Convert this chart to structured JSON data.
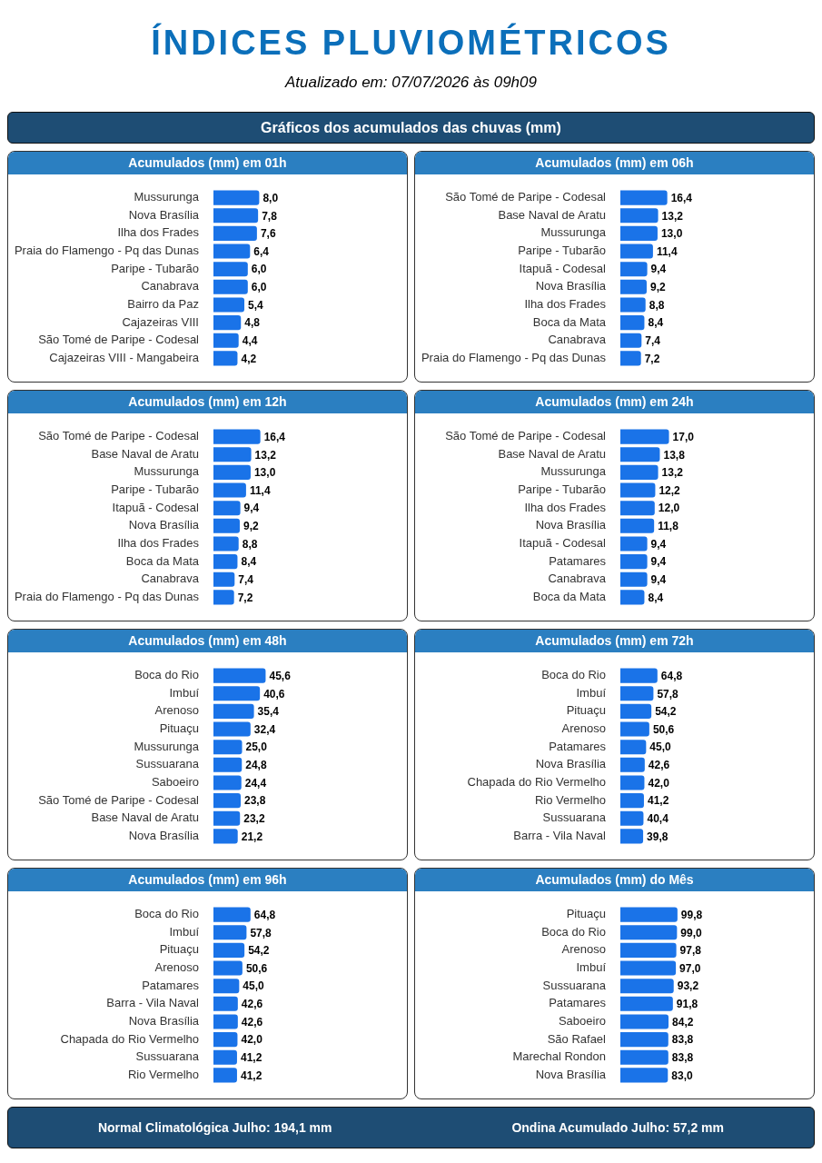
{
  "chart_data": [
    {
      "type": "other",
      "title": "ÍNDICES PLUVIOMÉTRICOS",
      "subtitle": "Atualizado em: 07/07/2026 às 09h09",
      "annotations": [
        "Gráficos dos acumulados das chuvas (mm)"
      ]
    },
    {
      "type": "bar",
      "orientation": "horizontal",
      "title": "Acumulados (mm) em 01h",
      "categories": [
        "Mussurunga",
        "Nova Brasília",
        "Ilha dos Frades",
        "Praia do Flamengo - Pq das Dunas",
        "Paripe - Tubarão",
        "Canabrava",
        "Bairro da Paz",
        "Cajazeiras VIII",
        "São Tomé de Paripe - Codesal",
        "Cajazeiras VIII - Mangabeira"
      ],
      "values": [
        8.0,
        7.8,
        7.6,
        6.4,
        6.0,
        6.0,
        5.4,
        4.8,
        4.4,
        4.2
      ],
      "value_labels": [
        "8,0",
        "7,8",
        "7,6",
        "6,4",
        "6,0",
        "6,0",
        "5,4",
        "4,8",
        "4,4",
        "4,2"
      ],
      "color": "#1a73e8"
    },
    {
      "type": "bar",
      "orientation": "horizontal",
      "title": "Acumulados (mm) em 06h",
      "categories": [
        "São Tomé de Paripe - Codesal",
        "Base Naval de Aratu",
        "Mussurunga",
        "Paripe - Tubarão",
        "Itapuã - Codesal",
        "Nova Brasília",
        "Ilha dos Frades",
        "Boca da Mata",
        "Canabrava",
        "Praia do Flamengo - Pq das Dunas"
      ],
      "values": [
        16.4,
        13.2,
        13.0,
        11.4,
        9.4,
        9.2,
        8.8,
        8.4,
        7.4,
        7.2
      ],
      "value_labels": [
        "16,4",
        "13,2",
        "13,0",
        "11,4",
        "9,4",
        "9,2",
        "8,8",
        "8,4",
        "7,4",
        "7,2"
      ],
      "color": "#1a73e8"
    },
    {
      "type": "bar",
      "orientation": "horizontal",
      "title": "Acumulados (mm) em 12h",
      "categories": [
        "São Tomé de Paripe - Codesal",
        "Base Naval de Aratu",
        "Mussurunga",
        "Paripe - Tubarão",
        "Itapuã - Codesal",
        "Nova Brasília",
        "Ilha dos Frades",
        "Boca da Mata",
        "Canabrava",
        "Praia do Flamengo - Pq das Dunas"
      ],
      "values": [
        16.4,
        13.2,
        13.0,
        11.4,
        9.4,
        9.2,
        8.8,
        8.4,
        7.4,
        7.2
      ],
      "value_labels": [
        "16,4",
        "13,2",
        "13,0",
        "11,4",
        "9,4",
        "9,2",
        "8,8",
        "8,4",
        "7,4",
        "7,2"
      ],
      "color": "#1a73e8"
    },
    {
      "type": "bar",
      "orientation": "horizontal",
      "title": "Acumulados (mm) em 24h",
      "categories": [
        "São Tomé de Paripe - Codesal",
        "Base Naval de Aratu",
        "Mussurunga",
        "Paripe - Tubarão",
        "Ilha dos Frades",
        "Nova Brasília",
        "Itapuã - Codesal",
        "Patamares",
        "Canabrava",
        "Boca da Mata"
      ],
      "values": [
        17.0,
        13.8,
        13.2,
        12.2,
        12.0,
        11.8,
        9.4,
        9.4,
        9.4,
        8.4
      ],
      "value_labels": [
        "17,0",
        "13,8",
        "13,2",
        "12,2",
        "12,0",
        "11,8",
        "9,4",
        "9,4",
        "9,4",
        "8,4"
      ],
      "color": "#1a73e8"
    },
    {
      "type": "bar",
      "orientation": "horizontal",
      "title": "Acumulados (mm) em 48h",
      "categories": [
        "Boca do Rio",
        "Imbuí",
        "Arenoso",
        "Pituaçu",
        "Mussurunga",
        "Sussuarana",
        "Saboeiro",
        "São Tomé de Paripe - Codesal",
        "Base Naval de Aratu",
        "Nova Brasília"
      ],
      "values": [
        45.6,
        40.6,
        35.4,
        32.4,
        25.0,
        24.8,
        24.4,
        23.8,
        23.2,
        21.2
      ],
      "value_labels": [
        "45,6",
        "40,6",
        "35,4",
        "32,4",
        "25,0",
        "24,8",
        "24,4",
        "23,8",
        "23,2",
        "21,2"
      ],
      "color": "#1a73e8"
    },
    {
      "type": "bar",
      "orientation": "horizontal",
      "title": "Acumulados (mm) em 72h",
      "categories": [
        "Boca do Rio",
        "Imbuí",
        "Pituaçu",
        "Arenoso",
        "Patamares",
        "Nova Brasília",
        "Chapada do Rio Vermelho",
        "Rio Vermelho",
        "Sussuarana",
        "Barra - Vila Naval"
      ],
      "values": [
        64.8,
        57.8,
        54.2,
        50.6,
        45.0,
        42.6,
        42.0,
        41.2,
        40.4,
        39.8
      ],
      "value_labels": [
        "64,8",
        "57,8",
        "54,2",
        "50,6",
        "45,0",
        "42,6",
        "42,0",
        "41,2",
        "40,4",
        "39,8"
      ],
      "color": "#1a73e8"
    },
    {
      "type": "bar",
      "orientation": "horizontal",
      "title": "Acumulados (mm) em 96h",
      "categories": [
        "Boca do Rio",
        "Imbuí",
        "Pituaçu",
        "Arenoso",
        "Patamares",
        "Barra - Vila Naval",
        "Nova Brasília",
        "Chapada do Rio Vermelho",
        "Sussuarana",
        "Rio Vermelho"
      ],
      "values": [
        64.8,
        57.8,
        54.2,
        50.6,
        45.0,
        42.6,
        42.6,
        42.0,
        41.2,
        41.2
      ],
      "value_labels": [
        "64,8",
        "57,8",
        "54,2",
        "50,6",
        "45,0",
        "42,6",
        "42,6",
        "42,0",
        "41,2",
        "41,2"
      ],
      "color": "#1a73e8"
    },
    {
      "type": "bar",
      "orientation": "horizontal",
      "title": "Acumulados (mm) do Mês",
      "categories": [
        "Pituaçu",
        "Boca do Rio",
        "Arenoso",
        "Imbuí",
        "Sussuarana",
        "Patamares",
        "Saboeiro",
        "São Rafael",
        "Marechal Rondon",
        "Nova Brasília"
      ],
      "values": [
        99.8,
        99.0,
        97.8,
        97.0,
        93.2,
        91.8,
        84.2,
        83.8,
        83.8,
        83.0
      ],
      "value_labels": [
        "99,8",
        "99,0",
        "97,8",
        "97,0",
        "93,2",
        "91,8",
        "84,2",
        "83,8",
        "83,8",
        "83,0"
      ],
      "color": "#1a73e8"
    },
    {
      "type": "other",
      "annotations": [
        "Normal Climatológica Julho: 194,1 mm",
        "Ondina Acumulado Julho: 57,2 mm"
      ]
    }
  ]
}
